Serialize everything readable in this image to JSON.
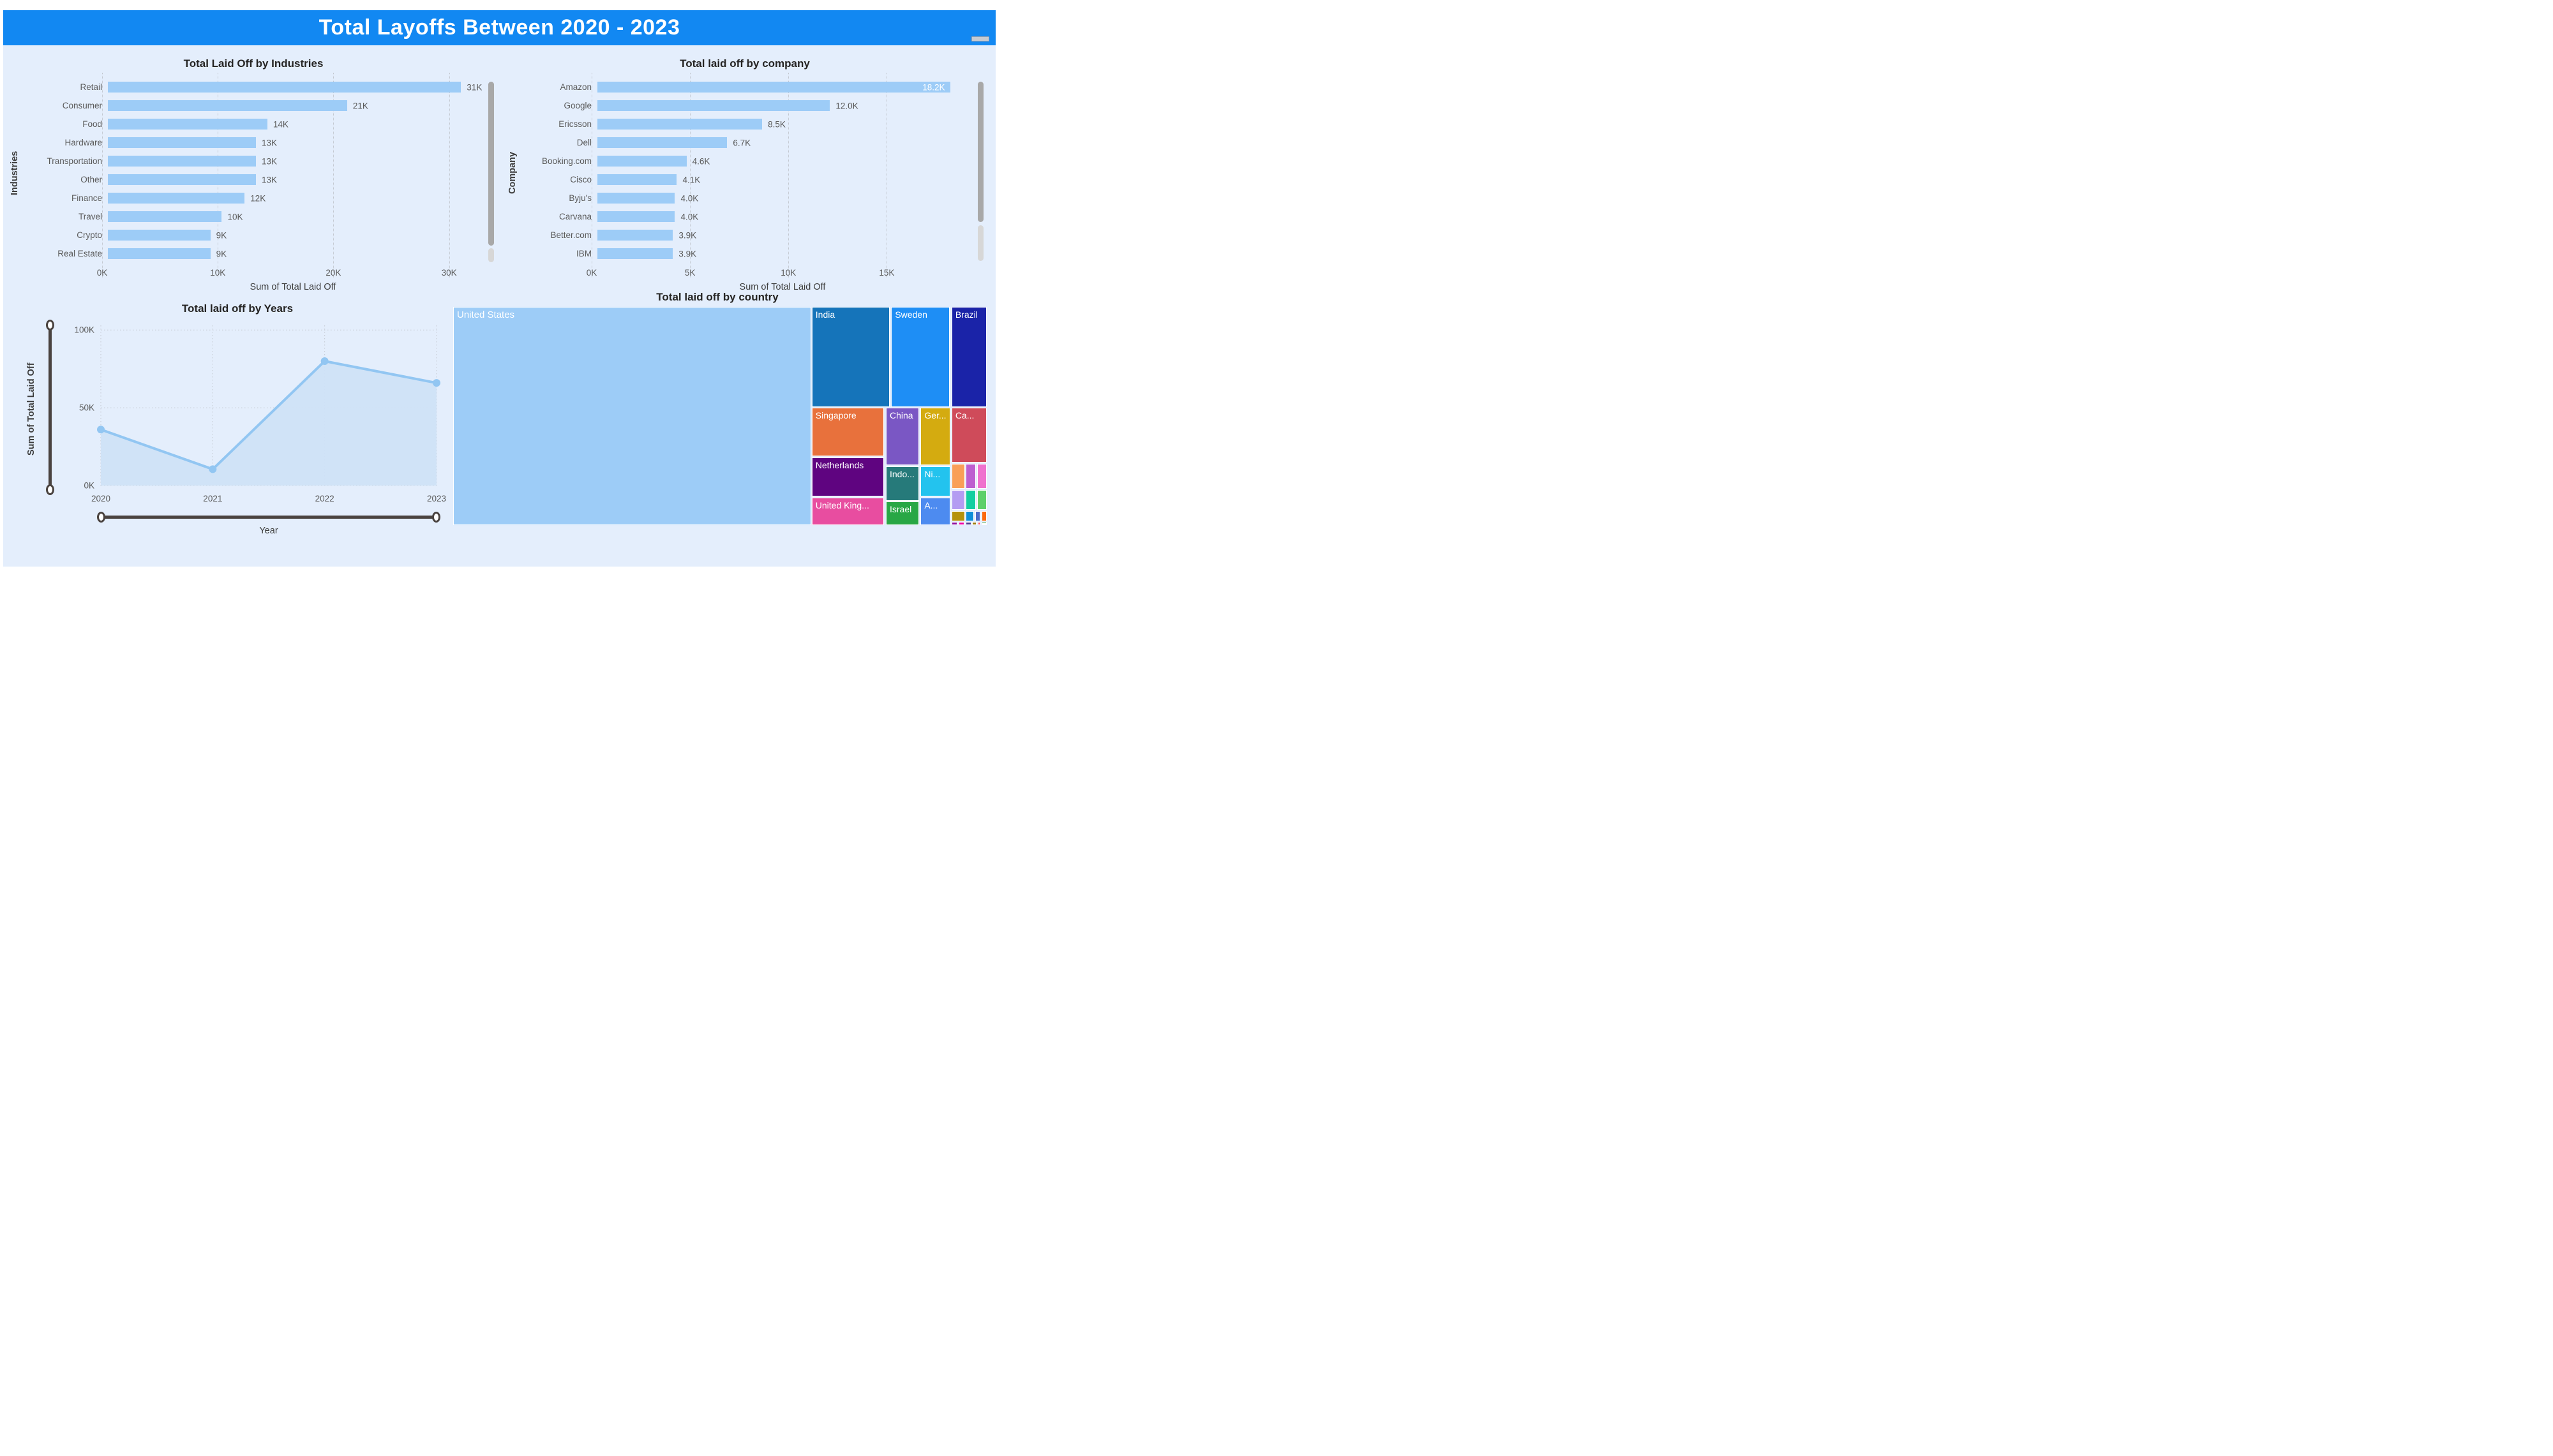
{
  "header": {
    "title": "Total Layoffs Between 2020 - 2023"
  },
  "colors": {
    "header_blue": "#1288f2",
    "dashboard_background": "#e4eefc",
    "bar_fill": "#9dccf7",
    "line_color": "#92c6f2",
    "area_fill": "#cfe2f7",
    "slider": "#49423f"
  },
  "chart_data": [
    {
      "id": "industries",
      "type": "bar",
      "orientation": "horizontal",
      "title": "Total Laid Off by Industries",
      "xlabel": "Sum of Total Laid Off",
      "ylabel": "Industries",
      "categories": [
        "Retail",
        "Consumer",
        "Food",
        "Hardware",
        "Transportation",
        "Other",
        "Finance",
        "Travel",
        "Crypto",
        "Real Estate"
      ],
      "values": [
        31000,
        21000,
        14000,
        13000,
        13000,
        13000,
        12000,
        10000,
        9000,
        9000
      ],
      "value_labels": [
        "31K",
        "21K",
        "14K",
        "13K",
        "13K",
        "13K",
        "12K",
        "10K",
        "9K",
        "9K"
      ],
      "x_ticks": [
        {
          "value": 0,
          "label": "0K"
        },
        {
          "value": 10000,
          "label": "10K"
        },
        {
          "value": 20000,
          "label": "20K"
        },
        {
          "value": 30000,
          "label": "30K"
        }
      ],
      "x_max": 33000,
      "inside_label_indices": [],
      "grid": true,
      "legend": "none"
    },
    {
      "id": "company",
      "type": "bar",
      "orientation": "horizontal",
      "title": "Total laid off by company",
      "xlabel": "Sum of Total Laid Off",
      "ylabel": "Company",
      "categories": [
        "Amazon",
        "Google",
        "Ericsson",
        "Dell",
        "Booking.com",
        "Cisco",
        "Byju's",
        "Carvana",
        "Better.com",
        "IBM"
      ],
      "values": [
        18200,
        12000,
        8500,
        6700,
        4600,
        4100,
        4000,
        4000,
        3900,
        3900
      ],
      "value_labels": [
        "18.2K",
        "12.0K",
        "8.5K",
        "6.7K",
        "4.6K",
        "4.1K",
        "4.0K",
        "4.0K",
        "3.9K",
        "3.9K"
      ],
      "x_ticks": [
        {
          "value": 0,
          "label": "0K"
        },
        {
          "value": 5000,
          "label": "5K"
        },
        {
          "value": 10000,
          "label": "10K"
        },
        {
          "value": 15000,
          "label": "15K"
        }
      ],
      "x_max": 19400,
      "inside_label_indices": [
        0
      ],
      "grid": true,
      "legend": "none"
    },
    {
      "id": "years",
      "type": "line",
      "title": "Total laid off by Years",
      "xlabel": "Year",
      "ylabel": "Sum of Total Laid Off",
      "x": [
        "2020",
        "2021",
        "2022",
        "2023"
      ],
      "values": [
        36000,
        10500,
        80000,
        66000
      ],
      "y_ticks": [
        {
          "value": 0,
          "label": "0K"
        },
        {
          "value": 50000,
          "label": "50K"
        },
        {
          "value": 100000,
          "label": "100K"
        }
      ],
      "y_max": 103000,
      "grid": true,
      "markers": true,
      "has_range_sliders": true
    },
    {
      "id": "country",
      "type": "treemap",
      "title": "Total laid off by country",
      "cells": [
        {
          "label": "United States",
          "big": true,
          "color": "#9dccf7",
          "x": 0,
          "y": 0,
          "w": 67.1,
          "h": 100
        },
        {
          "label": "India",
          "color": "#1574ba",
          "x": 67.2,
          "y": 0,
          "w": 14.6,
          "h": 45.8
        },
        {
          "label": "Sweden",
          "color": "#1e8ef5",
          "x": 82.1,
          "y": 0,
          "w": 11.0,
          "h": 45.8
        },
        {
          "label": "Brazil",
          "color": "#1a23a8",
          "x": 93.4,
          "y": 0,
          "w": 6.6,
          "h": 45.8
        },
        {
          "label": "Singapore",
          "color": "#e8713c",
          "x": 67.2,
          "y": 46.3,
          "w": 13.6,
          "h": 22.0
        },
        {
          "label": "Netherlands",
          "color": "#5f0480",
          "x": 67.2,
          "y": 68.9,
          "w": 13.6,
          "h": 18.0
        },
        {
          "label": "United King...",
          "color": "#e84da0",
          "x": 67.2,
          "y": 87.4,
          "w": 13.6,
          "h": 12.6
        },
        {
          "label": "China",
          "color": "#7a57c4",
          "x": 81.1,
          "y": 46.3,
          "w": 6.2,
          "h": 26.2
        },
        {
          "label": "Indo...",
          "color": "#267a7a",
          "x": 81.1,
          "y": 73.1,
          "w": 6.2,
          "h": 15.7
        },
        {
          "label": "Israel",
          "color": "#28a745",
          "x": 81.1,
          "y": 89.3,
          "w": 6.2,
          "h": 10.7
        },
        {
          "label": "Ger...",
          "color": "#d4ab10",
          "x": 87.6,
          "y": 46.3,
          "w": 5.6,
          "h": 26.2
        },
        {
          "label": "Ni...",
          "color": "#23c3ee",
          "x": 87.6,
          "y": 73.1,
          "w": 5.6,
          "h": 13.8
        },
        {
          "label": "A...",
          "color": "#4d8bf0",
          "x": 87.6,
          "y": 87.4,
          "w": 5.6,
          "h": 12.6
        },
        {
          "label": "Ca...",
          "color": "#cf4b5a",
          "x": 93.4,
          "y": 46.3,
          "w": 6.6,
          "h": 25.1
        },
        {
          "label": "",
          "color": "#f99f58",
          "x": 93.4,
          "y": 72.0,
          "w": 2.5,
          "h": 11.3
        },
        {
          "label": "",
          "color": "#bd5fd0",
          "x": 96.1,
          "y": 72.0,
          "w": 1.9,
          "h": 11.3
        },
        {
          "label": "",
          "color": "#ef72ce",
          "x": 98.2,
          "y": 72.0,
          "w": 1.8,
          "h": 11.3
        },
        {
          "label": "",
          "color": "#b49cf2",
          "x": 93.4,
          "y": 84.0,
          "w": 2.5,
          "h": 9.0
        },
        {
          "label": "",
          "color": "#12cfa0",
          "x": 96.1,
          "y": 84.0,
          "w": 1.9,
          "h": 9.0
        },
        {
          "label": "",
          "color": "#5ed06a",
          "x": 98.2,
          "y": 84.0,
          "w": 1.8,
          "h": 9.0
        },
        {
          "label": "",
          "color": "#b5920b",
          "x": 93.4,
          "y": 93.7,
          "w": 2.5,
          "h": 4.4
        },
        {
          "label": "",
          "color": "#0d8fd8",
          "x": 96.1,
          "y": 93.7,
          "w": 1.5,
          "h": 4.4
        },
        {
          "label": "",
          "color": "#4a6cc8",
          "x": 97.8,
          "y": 93.7,
          "w": 1.0,
          "h": 4.4
        },
        {
          "label": "",
          "color": "#fb6a0e",
          "x": 99.0,
          "y": 93.7,
          "w": 1.0,
          "h": 4.4
        },
        {
          "label": "",
          "color": "#8d0f9e",
          "x": 93.4,
          "y": 98.6,
          "w": 1.1,
          "h": 1.4
        },
        {
          "label": "",
          "color": "#ef00a5",
          "x": 94.7,
          "y": 98.6,
          "w": 1.1,
          "h": 1.4
        },
        {
          "label": "",
          "color": "#4b3a90",
          "x": 96.1,
          "y": 98.6,
          "w": 1.0,
          "h": 1.4
        },
        {
          "label": "",
          "color": "#9c7d0f",
          "x": 97.3,
          "y": 98.6,
          "w": 0.8,
          "h": 1.4
        },
        {
          "label": "",
          "color": "#f5404d",
          "x": 98.3,
          "y": 98.6,
          "w": 0.5,
          "h": 1.4
        },
        {
          "label": "",
          "color": "#1f8c3a",
          "x": 99.0,
          "y": 98.6,
          "w": 1.0,
          "h": 0.7
        },
        {
          "label": "",
          "color": "#0d5ba8",
          "x": 99.0,
          "y": 99.3,
          "w": 1.0,
          "h": 0.7
        }
      ]
    }
  ]
}
